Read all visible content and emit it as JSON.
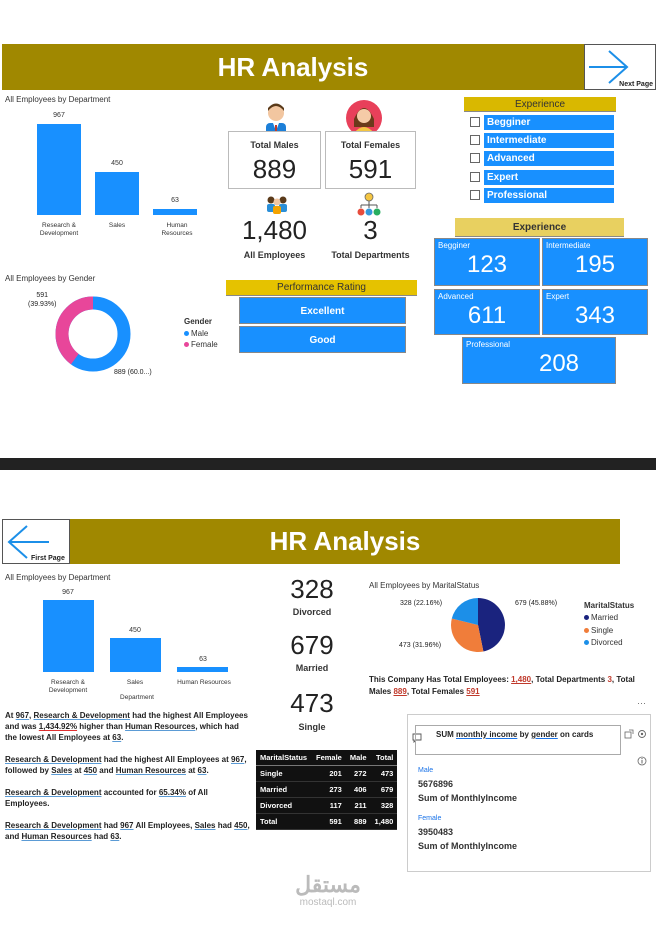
{
  "dashboard1": {
    "title": "HR Analysis",
    "next_page_label": "Next Page",
    "dept_chart_title": "All Employees by Department",
    "gender_chart_title": "All Employees by Gender",
    "cards": {
      "males_label": "Total Males",
      "males_value": "889",
      "females_label": "Total Females",
      "females_value": "591",
      "all_value": "1,480",
      "all_label": "All Employees",
      "depts_value": "3",
      "depts_label": "Total Departments"
    },
    "performance": {
      "title": "Performance Rating",
      "items": [
        "Excellent",
        "Good"
      ]
    },
    "experience_slicer": {
      "title": "Experience",
      "items": [
        "Begginer",
        "Intermediate",
        "Advanced",
        "Expert",
        "Professional"
      ]
    },
    "experience_cards": {
      "title": "Experience",
      "items": [
        {
          "label": "Begginer",
          "value": "123"
        },
        {
          "label": "Intermediate",
          "value": "195"
        },
        {
          "label": "Advanced",
          "value": "611"
        },
        {
          "label": "Expert",
          "value": "343"
        },
        {
          "label": "Professional",
          "value": "208"
        }
      ]
    },
    "gender_legend": {
      "title": "Gender",
      "items": [
        "Male",
        "Female"
      ]
    },
    "gender_labels": {
      "female": "591",
      "female_pct": "(39.93%)",
      "male": "889 (60.0...)"
    }
  },
  "dashboard2": {
    "title": "HR Analysis",
    "first_page_label": "First Page",
    "dept_chart_title": "All Employees by Department",
    "dept_axis_label": "Department",
    "stats": [
      {
        "value": "328",
        "label": "Divorced"
      },
      {
        "value": "679",
        "label": "Married"
      },
      {
        "value": "473",
        "label": "Single"
      }
    ],
    "marital_chart_title": "All Employees by MaritalStatus",
    "marital_legend": {
      "title": "MaritalStatus",
      "items": [
        "Married",
        "Single",
        "Divorced"
      ]
    },
    "marital_labels": {
      "divorced": "328 (22.16%)",
      "married": "679 (45.88%)",
      "single": "473 (31.96%)"
    },
    "summary": {
      "p1": "This Company Has Total Employees: ",
      "v1": "1,480",
      "p2": ", Total Departments ",
      "v2": "3",
      "p3": ", Total Males ",
      "v3": "889",
      "p4": ", Total Females ",
      "v4": "591"
    },
    "narrative": {
      "a1": "At ",
      "a2": "967",
      "a3": ", ",
      "a4": "Research & Development",
      "a5": " had the highest All Employees and was ",
      "a6": "1,434.92%",
      "a7": " higher than ",
      "a8": "Human Resources",
      "a9": ", which had the lowest All Employees at ",
      "a10": "63",
      "a11": ".",
      "b1": "Research & Development",
      "b2": " had the highest All Employees at ",
      "b3": "967",
      "b4": ", followed by ",
      "b5": "Sales",
      "b6": " at ",
      "b7": "450",
      "b8": " and ",
      "b9": "Human Resources",
      "b10": " at ",
      "b11": "63",
      "b12": ".",
      "c1": "Research & Development",
      "c2": " accounted for ",
      "c3": "65.34%",
      "c4": " of All Employees.",
      "d1": "Research & Development",
      "d2": " had ",
      "d3": "967",
      "d4": " All Employees, ",
      "d5": "Sales",
      "d6": " had ",
      "d7": "450",
      "d8": ", and ",
      "d9": "Human Resources",
      "d10": " had ",
      "d11": "63",
      "d12": "."
    },
    "table": {
      "headers": [
        "MaritalStatus",
        "Female",
        "Male",
        "Total"
      ],
      "rows": [
        [
          "Single",
          "201",
          "272",
          "473"
        ],
        [
          "Married",
          "273",
          "406",
          "679"
        ],
        [
          "Divorced",
          "117",
          "211",
          "328"
        ],
        [
          "Total",
          "591",
          "889",
          "1,480"
        ]
      ]
    },
    "qa": {
      "question_prefix": "SUM ",
      "question_mid1": "monthly income",
      "question_mid2": " by ",
      "question_mid3": "gender",
      "question_suffix": " on cards",
      "male_label": "Male",
      "male_value": "5676896",
      "male_measure": "Sum of MonthlyIncome",
      "female_label": "Female",
      "female_value": "3950483",
      "female_measure": "Sum of MonthlyIncome"
    }
  },
  "watermark": {
    "arabic": "مستقل",
    "latin": "mostaql.com"
  },
  "chart_data": [
    {
      "type": "bar",
      "title": "All Employees by Department",
      "categories": [
        "Research & Development",
        "Sales",
        "Human Resources"
      ],
      "values": [
        967,
        450,
        63
      ]
    },
    {
      "type": "pie",
      "title": "All Employees by Gender",
      "categories": [
        "Male",
        "Female"
      ],
      "values": [
        889,
        591
      ],
      "percent": [
        60.07,
        39.93
      ],
      "colors": [
        "#1890ff",
        "#e8469a"
      ]
    },
    {
      "type": "bar",
      "title": "All Employees by Department",
      "xlabel": "Department",
      "categories": [
        "Research & Development",
        "Sales",
        "Human Resources"
      ],
      "values": [
        967,
        450,
        63
      ]
    },
    {
      "type": "pie",
      "title": "All Employees by MaritalStatus",
      "categories": [
        "Married",
        "Single",
        "Divorced"
      ],
      "values": [
        679,
        473,
        328
      ],
      "percent": [
        45.88,
        31.96,
        22.16
      ],
      "colors": [
        "#1a237e",
        "#f07d3a",
        "#1c8fe8"
      ]
    }
  ]
}
